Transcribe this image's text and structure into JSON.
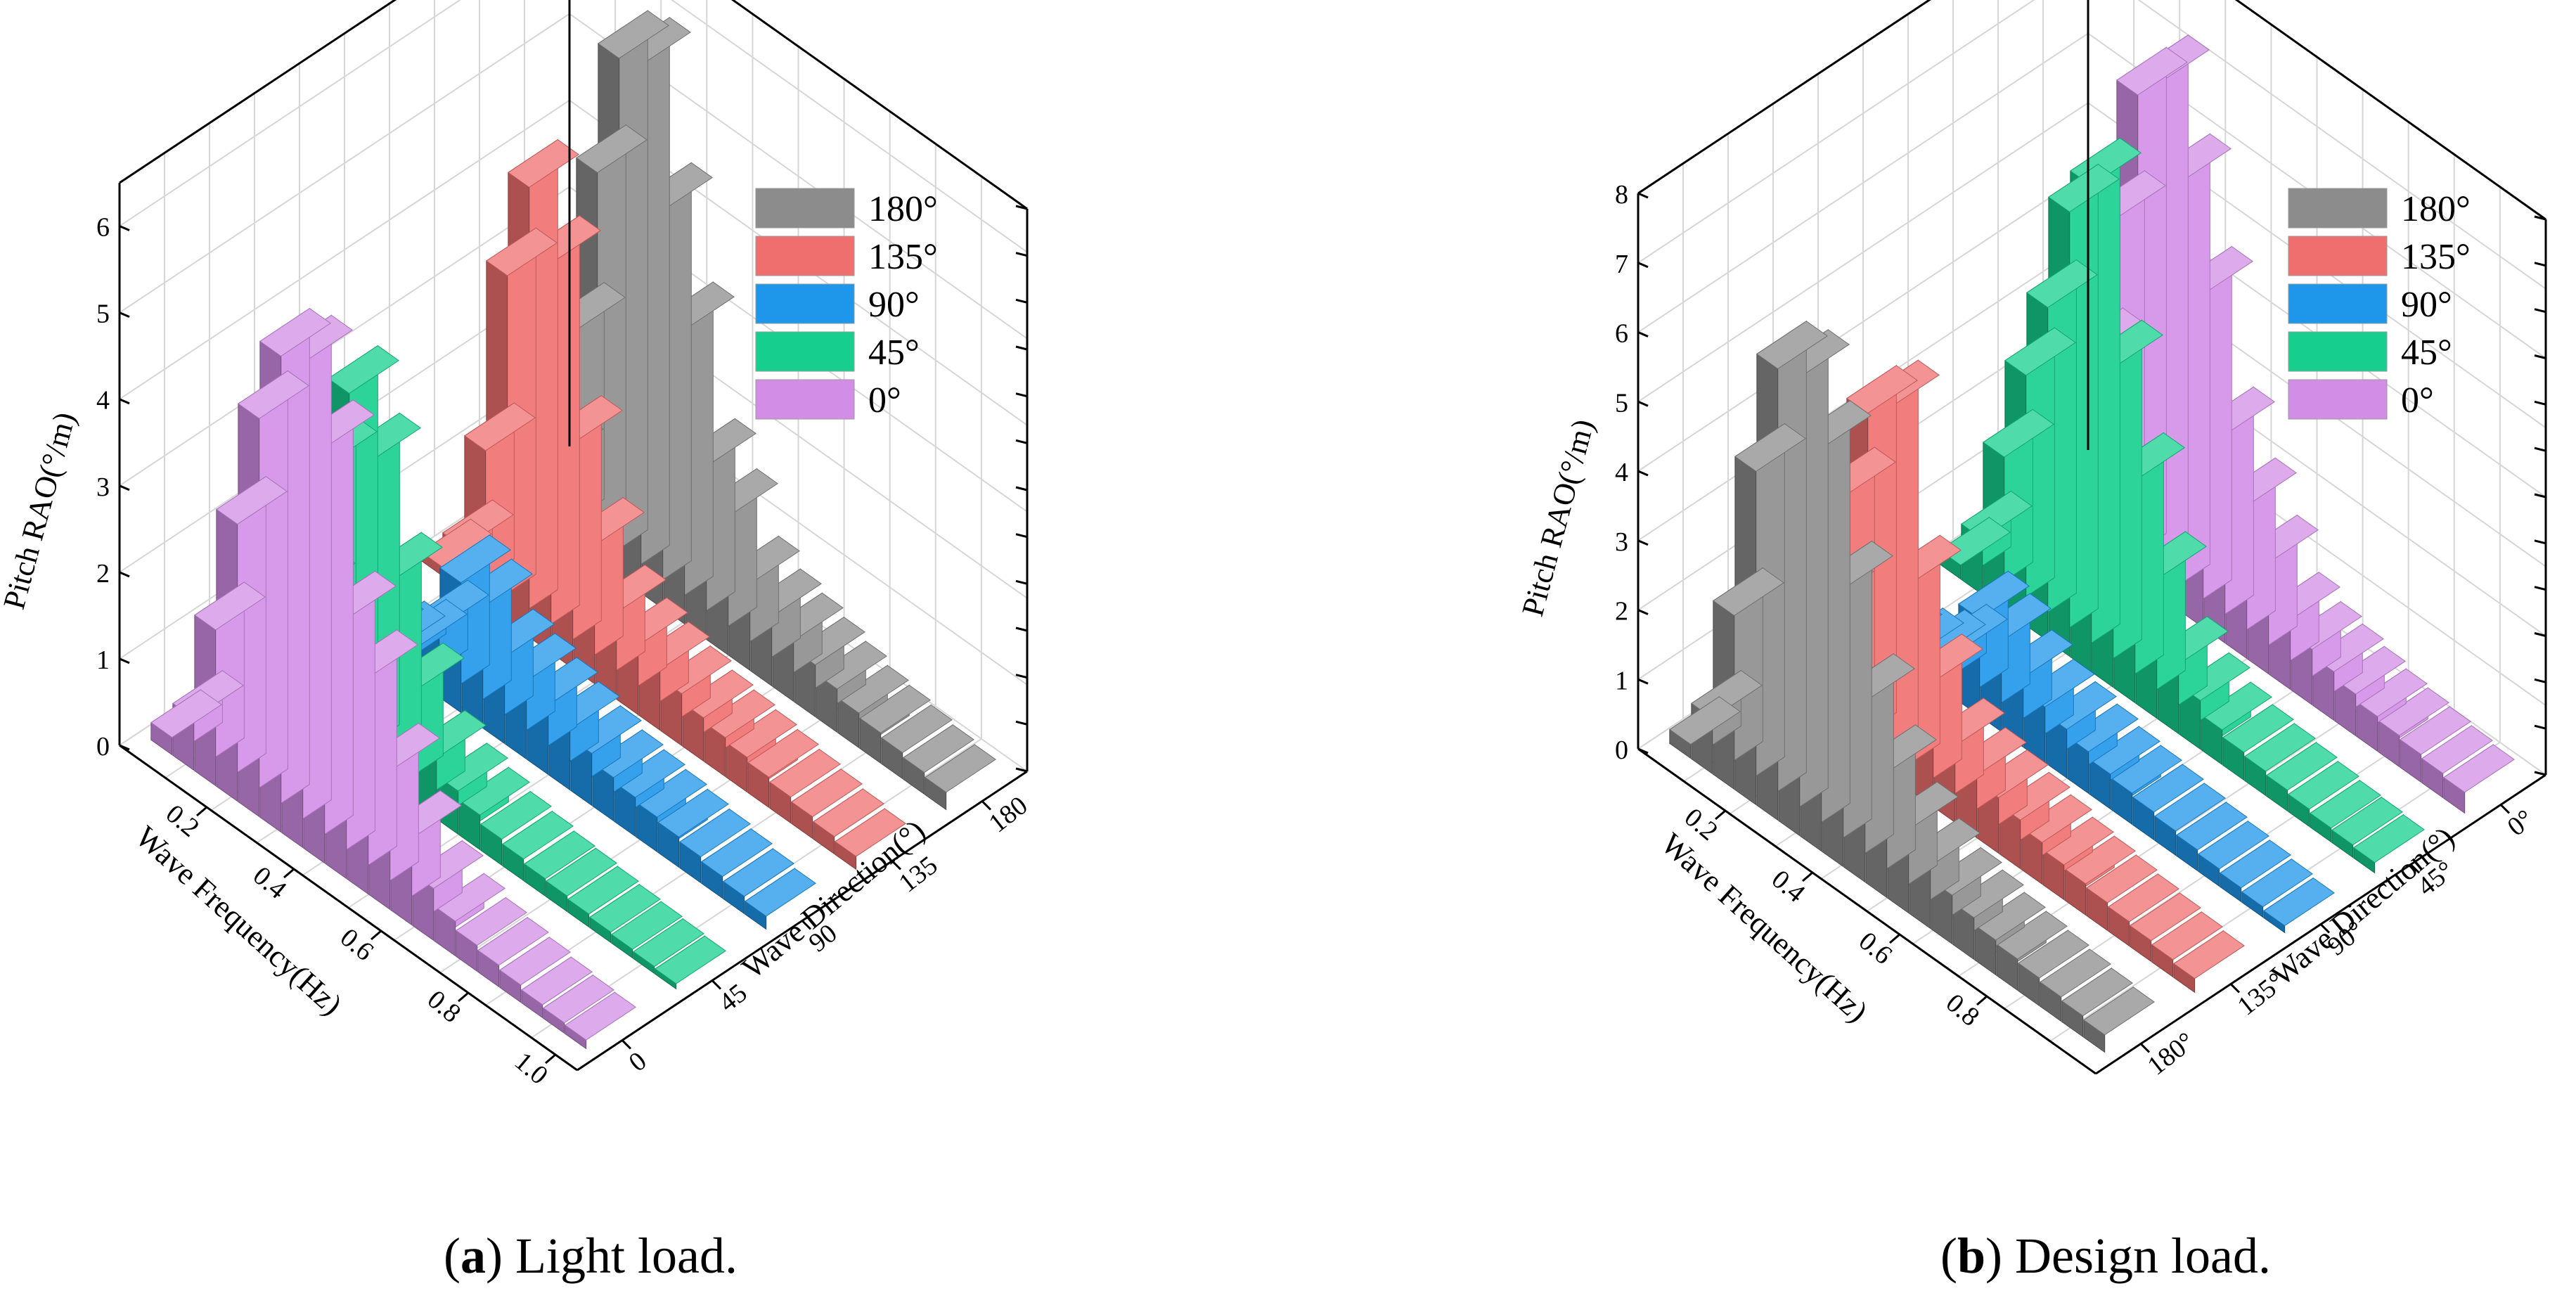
{
  "series_style": [
    {
      "name": "180°",
      "color": "#8c8c8c"
    },
    {
      "name": "135°",
      "color": "#ef6f6f"
    },
    {
      "name": "90°",
      "color": "#1e96ea"
    },
    {
      "name": "45°",
      "color": "#16cf8f"
    },
    {
      "name": "0°",
      "color": "#d28ee6"
    }
  ],
  "captions": [
    {
      "letter": "a",
      "text": " Light load."
    },
    {
      "letter": "b",
      "text": " Design load."
    }
  ],
  "chart_data": [
    {
      "type": "bar3d",
      "title": "(a) Light load.",
      "xlabel": "Wave Frequency(Hz)",
      "ylabel": "Wave Direction(°)",
      "zlabel": "Pitch RAO(°/m)",
      "zlim": [
        0,
        6.5
      ],
      "z_ticks": [
        "0",
        "1",
        "2",
        "3",
        "4",
        "5",
        "6"
      ],
      "x_ticks": [
        "0.2",
        "0.4",
        "0.6",
        "0.8",
        "1.0"
      ],
      "direction_ticks": [
        "0",
        "45",
        "90",
        "135",
        "180"
      ],
      "x": [
        0.05,
        0.1,
        0.15,
        0.2,
        0.25,
        0.3,
        0.35,
        0.4,
        0.45,
        0.5,
        0.55,
        0.6,
        0.65,
        0.7,
        0.75,
        0.8,
        0.85,
        0.9,
        0.95,
        1.0
      ],
      "legend": [
        "180°",
        "135°",
        "90°",
        "45°",
        "0°"
      ],
      "series": [
        {
          "name": "0°",
          "values": [
            0.2,
            0.6,
            1.8,
            3.2,
            4.6,
            5.5,
            5.6,
            4.8,
            3.0,
            2.5,
            1.6,
            1.0,
            0.6,
            0.4,
            0.3,
            0.25,
            0.2,
            0.15,
            0.12,
            0.1
          ]
        },
        {
          "name": "45°",
          "values": [
            0.1,
            0.4,
            1.5,
            3.2,
            4.2,
            3.6,
            2.4,
            1.3,
            0.7,
            0.5,
            0.4,
            0.3,
            0.25,
            0.2,
            0.18,
            0.15,
            0.12,
            0.1,
            0.08,
            0.06
          ]
        },
        {
          "name": "90°",
          "values": [
            0.05,
            0.1,
            0.2,
            0.4,
            0.8,
            1.5,
            1.4,
            1.0,
            0.9,
            0.8,
            0.7,
            0.6,
            0.5,
            0.45,
            0.4,
            0.35,
            0.3,
            0.25,
            0.2,
            0.15
          ]
        },
        {
          "name": "135°",
          "values": [
            0.1,
            0.5,
            1.8,
            4.0,
            5.2,
            4.5,
            2.6,
            1.6,
            1.0,
            0.8,
            0.7,
            0.6,
            0.5,
            0.45,
            0.4,
            0.35,
            0.3,
            0.25,
            0.2,
            0.15
          ]
        },
        {
          "name": "180°",
          "values": [
            0.2,
            0.8,
            2.5,
            4.5,
            6.0,
            6.1,
            4.6,
            3.4,
            2.0,
            1.6,
            1.0,
            0.8,
            0.7,
            0.6,
            0.5,
            0.4,
            0.35,
            0.3,
            0.25,
            0.2
          ]
        }
      ]
    },
    {
      "type": "bar3d",
      "title": "(b) Design load.",
      "xlabel": "Wave Frequency(Hz)",
      "ylabel": "Wave Direction(°)",
      "zlabel": "Pitch RAO(°/m)",
      "zlim": [
        0,
        8
      ],
      "z_ticks": [
        "0",
        "1",
        "2",
        "3",
        "4",
        "5",
        "6",
        "7",
        "8"
      ],
      "x_ticks": [
        "0.2",
        "0.4",
        "0.6",
        "0.8"
      ],
      "direction_ticks": [
        "180°",
        "135°",
        "90°",
        "45°",
        "0°"
      ],
      "x": [
        0.05,
        0.1,
        0.15,
        0.2,
        0.25,
        0.3,
        0.35,
        0.4,
        0.45,
        0.5,
        0.55,
        0.6,
        0.65,
        0.7,
        0.75,
        0.8,
        0.85,
        0.9,
        0.95,
        1.0
      ],
      "legend": [
        "180°",
        "135°",
        "90°",
        "45°",
        "0°"
      ],
      "series": [
        {
          "name": "180°",
          "values": [
            0.2,
            0.8,
            2.5,
            4.8,
            6.5,
            6.6,
            5.8,
            4.0,
            2.6,
            1.8,
            1.2,
            0.9,
            0.7,
            0.6,
            0.5,
            0.45,
            0.4,
            0.35,
            0.3,
            0.25
          ]
        },
        {
          "name": "135°",
          "values": [
            0.1,
            0.5,
            1.8,
            3.6,
            5.0,
            5.3,
            3.0,
            1.8,
            1.1,
            0.9,
            0.8,
            0.7,
            0.6,
            0.5,
            0.45,
            0.4,
            0.35,
            0.3,
            0.25,
            0.2
          ]
        },
        {
          "name": "90°",
          "values": [
            0.05,
            0.1,
            0.2,
            0.4,
            0.7,
            1.4,
            1.3,
            1.0,
            0.8,
            0.7,
            0.6,
            0.5,
            0.45,
            0.4,
            0.35,
            0.3,
            0.25,
            0.2,
            0.15,
            0.1
          ]
        },
        {
          "name": "45°",
          "values": [
            0.2,
            0.8,
            2.2,
            3.6,
            4.8,
            6.4,
            7.0,
            4.6,
            3.2,
            2.0,
            1.0,
            0.7,
            0.5,
            0.4,
            0.35,
            0.3,
            0.25,
            0.2,
            0.18,
            0.15
          ]
        },
        {
          "name": "0°",
          "values": [
            0.3,
            1.0,
            2.8,
            5.0,
            7.0,
            7.4,
            6.2,
            4.8,
            3.0,
            2.2,
            1.6,
            1.0,
            0.8,
            0.7,
            0.6,
            0.5,
            0.45,
            0.4,
            0.35,
            0.3
          ]
        }
      ]
    }
  ]
}
